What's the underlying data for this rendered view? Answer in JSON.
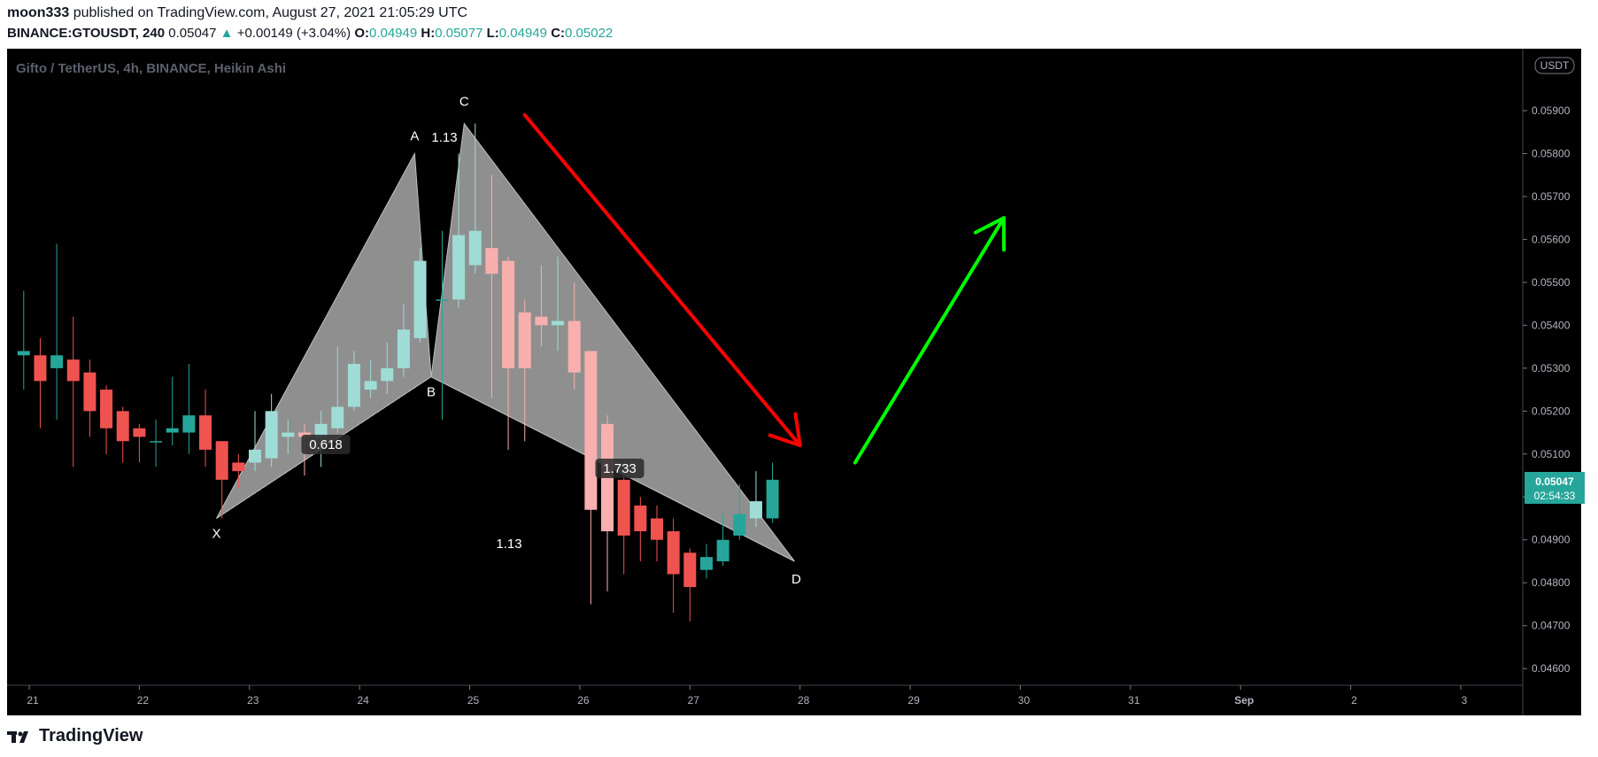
{
  "header": {
    "author": "moon333",
    "published_text": "published on TradingView.com, August 27, 2021 21:05:29 UTC",
    "symbol": "BINANCE:GTOUSDT, 240",
    "last": "0.05047",
    "change": "+0.00149 (+3.04%)",
    "o_label": "O:",
    "o_value": "0.04949",
    "h_label": "H:",
    "h_value": "0.05077",
    "l_label": "L:",
    "l_value": "0.04949",
    "c_label": "C:",
    "c_value": "0.05022"
  },
  "footer": {
    "brand": "TradingView"
  },
  "colors": {
    "up": "#26a69a",
    "down": "#ef5350",
    "up_light": "#9fdcd6",
    "down_light": "#f7b0ae",
    "pattern_fill": "#9e9e9e",
    "red_arrow": "#ff0000",
    "green_arrow": "#00ff00",
    "background": "#000000"
  },
  "chart_data": {
    "type": "candlestick",
    "title": "Gifto / TetherUS, 4h, BINANCE, Heikin Ashi",
    "currency_badge": "USDT",
    "x_tick_labels": [
      "21",
      "22",
      "23",
      "24",
      "25",
      "26",
      "27",
      "28",
      "29",
      "30",
      "31",
      "Sep",
      "2",
      "3"
    ],
    "y_tick_labels": [
      "0.04600",
      "0.04700",
      "0.04800",
      "0.04900",
      "0.05000",
      "0.05100",
      "0.05200",
      "0.05300",
      "0.05400",
      "0.05500",
      "0.05600",
      "0.05700",
      "0.05800",
      "0.05900"
    ],
    "ylim": [
      0.0455,
      0.0607
    ],
    "x_domain": [
      20.9,
      34.5
    ],
    "price_label": {
      "value": "0.05047",
      "countdown": "02:54:33"
    },
    "candles": [
      {
        "t": 20.95,
        "o": 0.0533,
        "h": 0.0548,
        "l": 0.0525,
        "c": 0.0534
      },
      {
        "t": 21.1,
        "o": 0.0533,
        "h": 0.0537,
        "l": 0.0516,
        "c": 0.0527
      },
      {
        "t": 21.25,
        "o": 0.053,
        "h": 0.0559,
        "l": 0.0518,
        "c": 0.0533
      },
      {
        "t": 21.4,
        "o": 0.0532,
        "h": 0.0542,
        "l": 0.0507,
        "c": 0.0527
      },
      {
        "t": 21.55,
        "o": 0.0529,
        "h": 0.0532,
        "l": 0.0514,
        "c": 0.052
      },
      {
        "t": 21.7,
        "o": 0.0525,
        "h": 0.0526,
        "l": 0.051,
        "c": 0.0516
      },
      {
        "t": 21.85,
        "o": 0.052,
        "h": 0.0521,
        "l": 0.0508,
        "c": 0.0513
      },
      {
        "t": 22.0,
        "o": 0.0516,
        "h": 0.0517,
        "l": 0.0508,
        "c": 0.0514
      },
      {
        "t": 22.15,
        "o": 0.0513,
        "h": 0.0518,
        "l": 0.0507,
        "c": 0.0513
      },
      {
        "t": 22.3,
        "o": 0.0515,
        "h": 0.0528,
        "l": 0.0512,
        "c": 0.0516
      },
      {
        "t": 22.45,
        "o": 0.0515,
        "h": 0.0531,
        "l": 0.051,
        "c": 0.0519
      },
      {
        "t": 22.6,
        "o": 0.0519,
        "h": 0.0525,
        "l": 0.0507,
        "c": 0.0511
      },
      {
        "t": 22.75,
        "o": 0.0513,
        "h": 0.0513,
        "l": 0.0495,
        "c": 0.0504
      },
      {
        "t": 22.9,
        "o": 0.0508,
        "h": 0.051,
        "l": 0.0502,
        "c": 0.0506
      },
      {
        "t": 23.05,
        "o": 0.0508,
        "h": 0.052,
        "l": 0.0506,
        "c": 0.0511
      },
      {
        "t": 23.2,
        "o": 0.0509,
        "h": 0.0524,
        "l": 0.0507,
        "c": 0.052
      },
      {
        "t": 23.35,
        "o": 0.0514,
        "h": 0.0518,
        "l": 0.051,
        "c": 0.0515
      },
      {
        "t": 23.5,
        "o": 0.0515,
        "h": 0.0517,
        "l": 0.0505,
        "c": 0.0514
      },
      {
        "t": 23.65,
        "o": 0.0514,
        "h": 0.052,
        "l": 0.0507,
        "c": 0.0517
      },
      {
        "t": 23.8,
        "o": 0.0516,
        "h": 0.0535,
        "l": 0.0515,
        "c": 0.0521
      },
      {
        "t": 23.95,
        "o": 0.0521,
        "h": 0.0534,
        "l": 0.052,
        "c": 0.0531
      },
      {
        "t": 24.1,
        "o": 0.0525,
        "h": 0.0532,
        "l": 0.0523,
        "c": 0.0527
      },
      {
        "t": 24.25,
        "o": 0.0527,
        "h": 0.0536,
        "l": 0.0524,
        "c": 0.053
      },
      {
        "t": 24.4,
        "o": 0.053,
        "h": 0.0545,
        "l": 0.0528,
        "c": 0.0539
      },
      {
        "t": 24.55,
        "o": 0.0537,
        "h": 0.0558,
        "l": 0.0536,
        "c": 0.0555
      },
      {
        "t": 24.75,
        "o": 0.0546,
        "h": 0.0562,
        "l": 0.0518,
        "c": 0.0546
      },
      {
        "t": 24.9,
        "o": 0.0546,
        "h": 0.058,
        "l": 0.0544,
        "c": 0.0561
      },
      {
        "t": 25.05,
        "o": 0.0554,
        "h": 0.0587,
        "l": 0.0552,
        "c": 0.0562
      },
      {
        "t": 25.2,
        "o": 0.0558,
        "h": 0.0575,
        "l": 0.0523,
        "c": 0.0552
      },
      {
        "t": 25.35,
        "o": 0.0555,
        "h": 0.0556,
        "l": 0.0511,
        "c": 0.053
      },
      {
        "t": 25.5,
        "o": 0.0543,
        "h": 0.0546,
        "l": 0.0513,
        "c": 0.053
      },
      {
        "t": 25.65,
        "o": 0.0542,
        "h": 0.0554,
        "l": 0.0535,
        "c": 0.054
      },
      {
        "t": 25.8,
        "o": 0.054,
        "h": 0.0556,
        "l": 0.0534,
        "c": 0.0541
      },
      {
        "t": 25.95,
        "o": 0.0541,
        "h": 0.055,
        "l": 0.0525,
        "c": 0.0529
      },
      {
        "t": 26.1,
        "o": 0.0534,
        "h": 0.0534,
        "l": 0.0475,
        "c": 0.0497
      },
      {
        "t": 26.25,
        "o": 0.0517,
        "h": 0.0519,
        "l": 0.0478,
        "c": 0.0492
      },
      {
        "t": 26.4,
        "o": 0.0504,
        "h": 0.0506,
        "l": 0.0482,
        "c": 0.0491
      },
      {
        "t": 26.55,
        "o": 0.0498,
        "h": 0.05,
        "l": 0.0485,
        "c": 0.0492
      },
      {
        "t": 26.7,
        "o": 0.0495,
        "h": 0.0498,
        "l": 0.0485,
        "c": 0.049
      },
      {
        "t": 26.85,
        "o": 0.0492,
        "h": 0.0495,
        "l": 0.0473,
        "c": 0.0482
      },
      {
        "t": 27.0,
        "o": 0.0487,
        "h": 0.0488,
        "l": 0.0471,
        "c": 0.0479
      },
      {
        "t": 27.15,
        "o": 0.0483,
        "h": 0.0489,
        "l": 0.0481,
        "c": 0.0486
      },
      {
        "t": 27.3,
        "o": 0.0485,
        "h": 0.0496,
        "l": 0.0484,
        "c": 0.049
      },
      {
        "t": 27.45,
        "o": 0.0491,
        "h": 0.0503,
        "l": 0.049,
        "c": 0.0496
      },
      {
        "t": 27.6,
        "o": 0.0495,
        "h": 0.0506,
        "l": 0.0493,
        "c": 0.0499
      },
      {
        "t": 27.75,
        "o": 0.0495,
        "h": 0.0508,
        "l": 0.0494,
        "c": 0.0504
      }
    ],
    "pattern": {
      "points": [
        {
          "label": "X",
          "t": 22.7,
          "price": 0.0495
        },
        {
          "label": "A",
          "t": 24.5,
          "price": 0.058
        },
        {
          "label": "B",
          "t": 24.65,
          "price": 0.0528
        },
        {
          "label": "C",
          "t": 24.95,
          "price": 0.0587
        },
        {
          "label": "D",
          "t": 27.95,
          "price": 0.0485
        }
      ],
      "ratios": [
        "0.618",
        "1.13",
        "1.733",
        "1.13"
      ]
    },
    "arrows": [
      {
        "name": "red-down-arrow",
        "from": {
          "t": 25.5,
          "price": 0.0589
        },
        "to": {
          "t": 28.0,
          "price": 0.0512
        }
      },
      {
        "name": "green-up-arrow",
        "from": {
          "t": 28.5,
          "price": 0.0508
        },
        "to": {
          "t": 29.85,
          "price": 0.0565
        }
      }
    ]
  }
}
